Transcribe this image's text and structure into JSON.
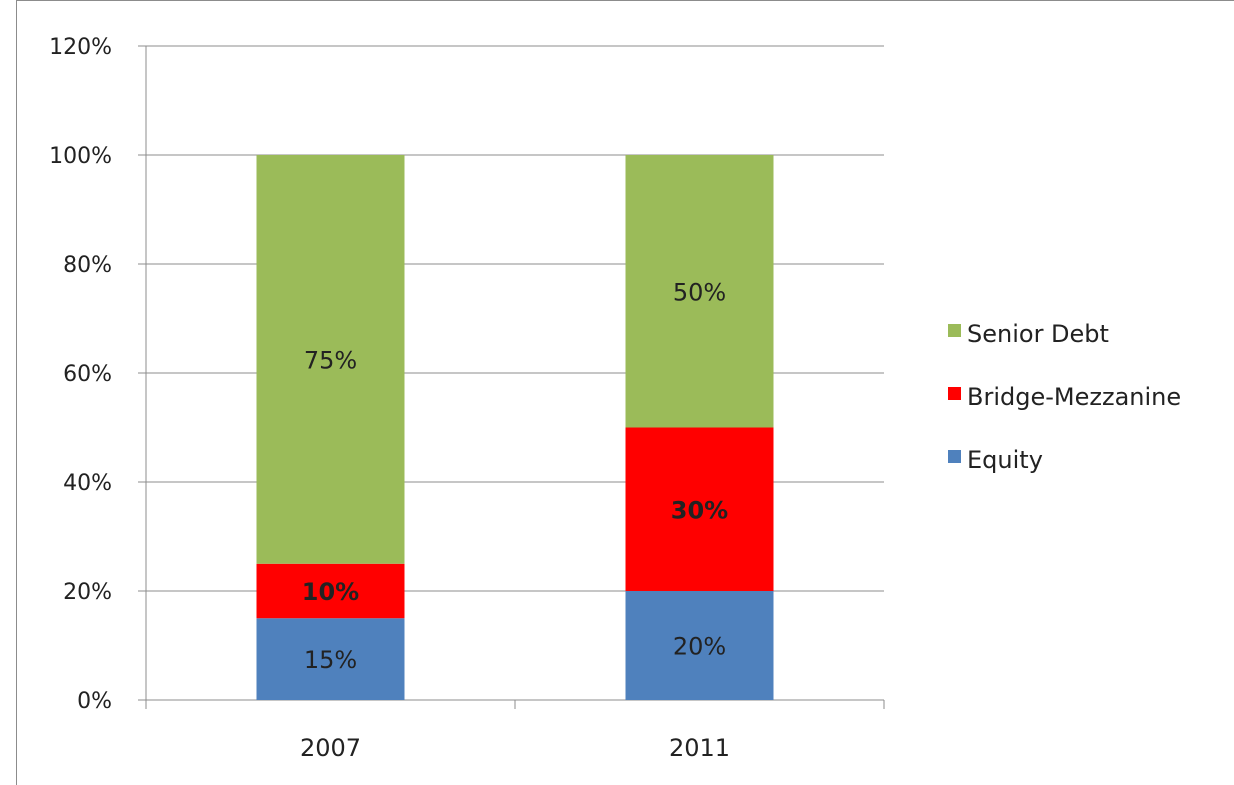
{
  "chart_data": {
    "type": "bar",
    "stacked": true,
    "categories": [
      "2007",
      "2011"
    ],
    "series": [
      {
        "name": "Equity",
        "values": [
          15,
          20
        ],
        "labels": [
          "15%",
          "20%"
        ],
        "color": "#4f81bd",
        "label_bold": false
      },
      {
        "name": "Bridge-Mezzanine",
        "values": [
          10,
          30
        ],
        "labels": [
          "10%",
          "30%"
        ],
        "color": "#ff0000",
        "label_bold": true
      },
      {
        "name": "Senior Debt",
        "values": [
          75,
          50
        ],
        "labels": [
          "75%",
          "50%"
        ],
        "color": "#9bbb59",
        "label_bold": false
      }
    ],
    "ylim": [
      0,
      120
    ],
    "yticks": [
      0,
      20,
      40,
      60,
      80,
      100,
      120
    ],
    "ytick_labels": [
      "0%",
      "20%",
      "40%",
      "60%",
      "80%",
      "100%",
      "120%"
    ],
    "grid": true,
    "legend_position": "right",
    "legend_order": [
      "Senior Debt",
      "Bridge-Mezzanine",
      "Equity"
    ]
  }
}
